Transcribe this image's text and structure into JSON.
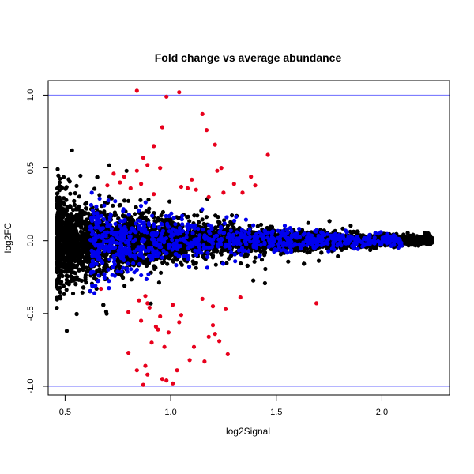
{
  "chart_data": {
    "type": "scatter",
    "title": "Fold change vs average abundance",
    "xlabel": "log2Signal",
    "ylabel": "log2FC",
    "xlim": [
      0.42,
      2.32
    ],
    "ylim": [
      -1.06,
      1.1
    ],
    "x_ticks": [
      {
        "value": 0.5,
        "label": "0.5"
      },
      {
        "value": 1.0,
        "label": "1.0"
      },
      {
        "value": 1.5,
        "label": "1.5"
      },
      {
        "value": 2.0,
        "label": "2.0"
      }
    ],
    "y_ticks": [
      {
        "value": -1.0,
        "label": "-1.0"
      },
      {
        "value": -0.5,
        "label": "-0.5"
      },
      {
        "value": 0.0,
        "label": "0.0"
      },
      {
        "value": 0.5,
        "label": "0.5"
      },
      {
        "value": 1.0,
        "label": "1.0"
      }
    ],
    "reference_lines": [
      {
        "axis": "y",
        "value": 1.0,
        "color": "#6b6bff"
      },
      {
        "axis": "y",
        "value": -1.0,
        "color": "#6b6bff"
      }
    ],
    "colors": {
      "black": "#000000",
      "blue": "#0000ee",
      "red": "#e8001c"
    },
    "grid": false,
    "legend": "none",
    "red_points": {
      "x": [
        0.84,
        0.98,
        1.04,
        1.15,
        1.17,
        0.96,
        1.21,
        0.92,
        0.73,
        0.78,
        1.1,
        1.22,
        1.46,
        1.24,
        1.38,
        1.4,
        0.87,
        0.89,
        0.84,
        0.95,
        0.7,
        1.08,
        1.3,
        1.25,
        1.34,
        0.86,
        0.76,
        0.81,
        0.92,
        1.12,
        1.18,
        1.05,
        0.67,
        0.88,
        1.15,
        0.85,
        1.01,
        1.2,
        1.33,
        0.9,
        0.8,
        0.95,
        1.26,
        1.69,
        1.04,
        0.93,
        0.99,
        1.21,
        0.8,
        0.97,
        1.23,
        1.09,
        1.03,
        0.88,
        0.84,
        1.16,
        0.96,
        1.01,
        1.11,
        1.27,
        1.2,
        0.91,
        1.05,
        0.89,
        0.86,
        0.94,
        1.18,
        0.87,
        0.89,
        0.98
      ],
      "y": [
        1.03,
        0.99,
        1.02,
        0.87,
        0.76,
        0.78,
        0.66,
        0.65,
        0.46,
        0.44,
        0.42,
        0.48,
        0.59,
        0.5,
        0.44,
        0.38,
        0.57,
        0.52,
        0.48,
        0.5,
        0.38,
        0.36,
        0.39,
        0.33,
        0.33,
        0.39,
        0.4,
        0.36,
        0.32,
        0.35,
        0.3,
        0.37,
        -0.33,
        -0.38,
        -0.4,
        -0.41,
        -0.44,
        -0.45,
        -0.39,
        -0.46,
        -0.49,
        -0.52,
        -0.47,
        -0.43,
        -0.56,
        -0.59,
        -0.63,
        -0.64,
        -0.77,
        -0.73,
        -0.69,
        -0.82,
        -0.89,
        -0.86,
        -0.89,
        -0.83,
        -0.95,
        -0.98,
        -0.73,
        -0.78,
        -0.58,
        -0.7,
        -0.51,
        -0.43,
        -0.55,
        -0.61,
        -0.66,
        -0.99,
        -0.92,
        -0.96
      ]
    },
    "blue_points_description": "dense band of points around log2FC 0, x ≈ 0.65–2.1, |log2FC| up to ≈ 0.3",
    "black_points_description": "densest band of points, x ≈ 0.45–2.25, tapering from |log2FC| ≈ 0.6 at low x to ≈ 0.03 at x ≈ 2.2"
  }
}
